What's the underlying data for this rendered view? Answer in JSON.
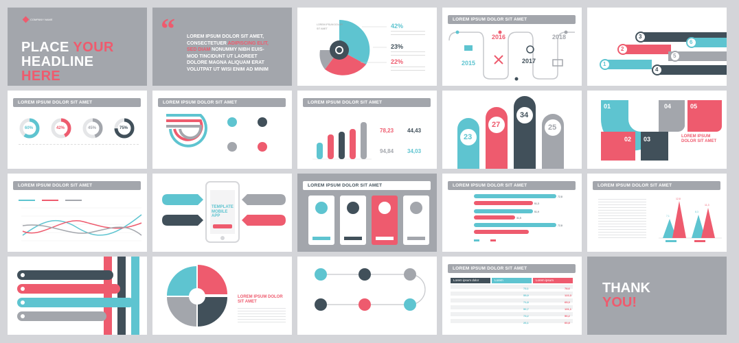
{
  "colors": {
    "teal": "#5ec4d0",
    "pink": "#ee5b6e",
    "dark": "#41505a",
    "gray": "#a3a6ac"
  },
  "common": {
    "section_title": "LOREM IPSUM DOLOR SIT AMET"
  },
  "slide1": {
    "company": "COMPANY NAME",
    "headline_1": "PLACE ",
    "headline_accent": "YOUR",
    "headline_2": "HEADLINE",
    "headline_3": "HERE"
  },
  "slide2": {
    "quote_mark": "“",
    "line1": "LOREM IPSUM DOLOR SIT AMET,",
    "line2a": "CONSECTETUER ",
    "line2b": "ADIPISCING ELIT,",
    "line3a": "SED DIAM ",
    "line3b": "NONUMMY NIBH EUIS-",
    "line4": "MOD TINCIDUNT UT LAOREET",
    "line5": "DOLORE MAGNA ALIQUAM ERAT",
    "line6": "VOLUTPAT UT WISI ENIM AD MINIM"
  },
  "slide3": {
    "p1": "42%",
    "p2": "23%",
    "p3": "22%"
  },
  "slide4": {
    "y1": "2015",
    "y2": "2016",
    "y3": "2017",
    "y4": "2018"
  },
  "slide5": {
    "n1": "1",
    "n2": "2",
    "n3": "3",
    "n4": "4",
    "n5": "5",
    "n6": "6"
  },
  "slide6": {
    "p1": "60%",
    "p2": "42%",
    "p3": "45%",
    "p4": "75%"
  },
  "slide8": {
    "v1": "78,23",
    "v2": "44,43",
    "v3": "94,84",
    "v4": "34,03"
  },
  "slide9": {
    "n1": "23",
    "n2": "27",
    "n3": "34",
    "n4": "25"
  },
  "slide10": {
    "n1": "01",
    "n2": "02",
    "n3": "03",
    "n4": "04",
    "n5": "05",
    "caption": "LOREM IPSUM DOLOR SIT AMET"
  },
  "slide12": {
    "title": "TEMPLATE MOBILE APP"
  },
  "slide14": {
    "v1": "72,8",
    "v2": "51,3",
    "v3": "51,9",
    "v4": "31,5",
    "v5": "72,8"
  },
  "slide15": {
    "v1": "12,8",
    "v2": "7,1",
    "v3": "8,3",
    "v4": "11,3"
  },
  "slide17": {
    "caption": "LOREM IPSUM DOLOR SIT AMET"
  },
  "slide19": {
    "h1": "Lorem ipsum dolor",
    "h2": "Lorem",
    "h3": "Lorem ipsum",
    "c1": [
      "73,1",
      "55,9",
      "71,8",
      "50,7",
      "73,2",
      "26,1"
    ],
    "c2": [
      "78,6",
      "122,3",
      "65,3",
      "131,1",
      "50,2",
      "60,8"
    ]
  },
  "slide20": {
    "line1": "THANK",
    "line2": "YOU!"
  }
}
